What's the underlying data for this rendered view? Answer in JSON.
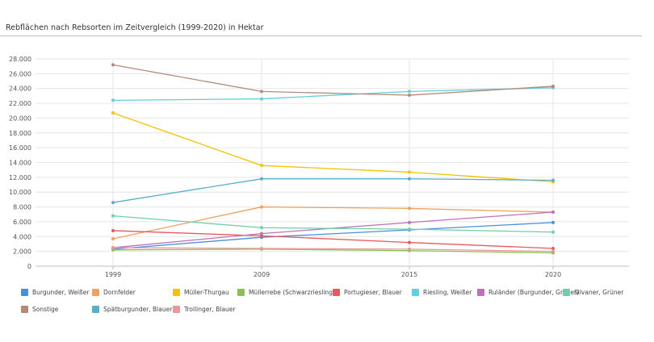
{
  "chart_data": {
    "type": "line",
    "title": "Rebflächen nach Rebsorten im Zeitvergleich (1999-2020) in Hektar",
    "x": [
      "1999",
      "2009",
      "2015",
      "2020"
    ],
    "ylim": [
      0,
      28000
    ],
    "yticks": [
      "0",
      "2.000",
      "4.000",
      "6.000",
      "8.000",
      "10.000",
      "12.000",
      "14.000",
      "16.000",
      "18.000",
      "20.000",
      "22.000",
      "24.000",
      "26.000",
      "28.000"
    ],
    "ytick_values": [
      0,
      2000,
      4000,
      6000,
      8000,
      10000,
      12000,
      14000,
      16000,
      18000,
      20000,
      22000,
      24000,
      26000,
      28000
    ],
    "grid": true,
    "legend_position": "bottom",
    "series": [
      {
        "name": "Burgunder, Weißer",
        "color": "#4a90d9",
        "values": [
          2300,
          3900,
          4900,
          5900
        ]
      },
      {
        "name": "Dornfelder",
        "color": "#f0a060",
        "values": [
          3700,
          8000,
          7800,
          7300
        ]
      },
      {
        "name": "Müller-Thurgau",
        "color": "#f5c200",
        "values": [
          20700,
          13600,
          12700,
          11400
        ]
      },
      {
        "name": "Müllerrebe (Schwarzriesling)",
        "color": "#8cc152",
        "values": [
          2200,
          2300,
          2100,
          1800
        ]
      },
      {
        "name": "Portugieser, Blauer",
        "color": "#e8585f",
        "values": [
          4800,
          4100,
          3200,
          2400
        ]
      },
      {
        "name": "Riesling, Weißer",
        "color": "#5fd0dc",
        "values": [
          22400,
          22600,
          23600,
          24100
        ]
      },
      {
        "name": "Ruländer (Burgunder, Grauer)",
        "color": "#c070b8",
        "values": [
          2500,
          4400,
          5900,
          7300
        ]
      },
      {
        "name": "Silvaner, Grüner",
        "color": "#6cd0a8",
        "values": [
          6800,
          5200,
          5000,
          4600
        ]
      },
      {
        "name": "Sonstige",
        "color": "#b48a78",
        "values": [
          27200,
          23600,
          23100,
          24300
        ]
      },
      {
        "name": "Spätburgunder, Blauer",
        "color": "#5aaecc",
        "values": [
          8600,
          11800,
          11800,
          11600
        ]
      },
      {
        "name": "Trollinger, Blauer",
        "color": "#e89a9a",
        "values": [
          2500,
          2400,
          2300,
          2000
        ]
      }
    ]
  }
}
